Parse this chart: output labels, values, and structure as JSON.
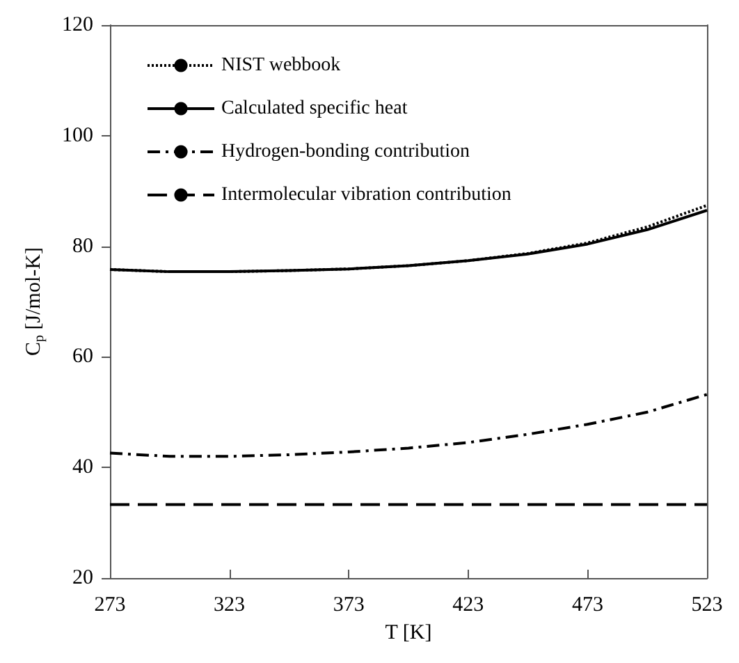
{
  "chart_data": {
    "type": "line",
    "xlabel": "T [K]",
    "ylabel": "C$_{p}$ [J/mol-K]",
    "x": [
      273,
      298,
      323,
      348,
      373,
      398,
      423,
      448,
      473,
      498,
      523
    ],
    "xlim": [
      273,
      523
    ],
    "xticks": [
      273,
      323,
      373,
      423,
      473,
      523
    ],
    "ylim": [
      20,
      120
    ],
    "yticks": [
      20,
      40,
      60,
      80,
      100,
      120
    ],
    "grid": false,
    "legend": "top left",
    "marker": "none",
    "series": [
      {
        "name": "NIST webbook",
        "color": "#000000",
        "line_style": "dotted",
        "values": [
          75.8,
          75.4,
          75.4,
          75.6,
          75.9,
          76.5,
          77.4,
          78.7,
          80.6,
          83.5,
          87.4
        ]
      },
      {
        "name": "Calculated specific heat",
        "color": "#000000",
        "line_style": "solid",
        "values": [
          75.8,
          75.4,
          75.4,
          75.6,
          75.9,
          76.5,
          77.4,
          78.6,
          80.4,
          83.0,
          86.5
        ]
      },
      {
        "name": "Hydrogen-bonding contribution",
        "color": "#000000",
        "line_style": "dashdot",
        "values": [
          42.6,
          42.0,
          42.0,
          42.3,
          42.8,
          43.5,
          44.5,
          46.0,
          47.8,
          50.0,
          53.2
        ]
      },
      {
        "name": "Intermolecular vibration contribution",
        "color": "#000000",
        "line_style": "dashed",
        "values": [
          33.3,
          33.3,
          33.3,
          33.3,
          33.3,
          33.3,
          33.3,
          33.3,
          33.3,
          33.3,
          33.3
        ]
      }
    ]
  }
}
